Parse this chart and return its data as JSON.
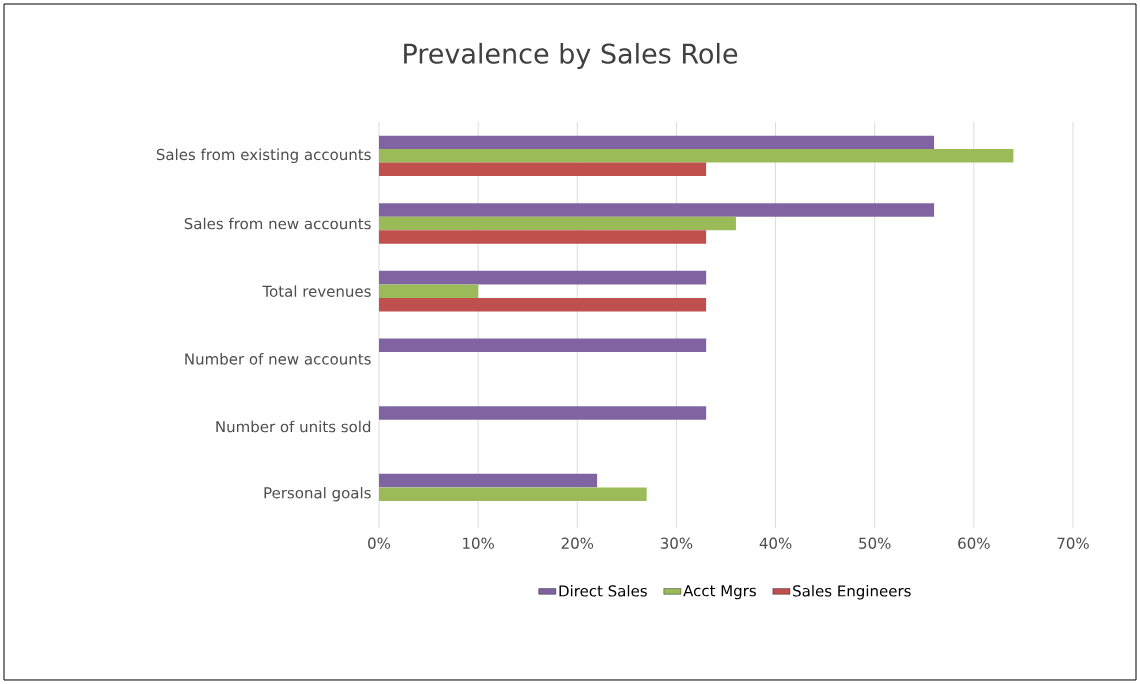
{
  "chart_data": {
    "type": "bar",
    "orientation": "horizontal",
    "title": "Prevalence by Sales Role",
    "categories": [
      "Sales from existing accounts",
      "Sales from new accounts",
      "Total revenues",
      "Number of new accounts",
      "Number of units sold",
      "Personal goals"
    ],
    "series": [
      {
        "name": "Direct Sales",
        "color": "#8064a2",
        "values": [
          56,
          56,
          33,
          33,
          33,
          22
        ]
      },
      {
        "name": "Acct Mgrs",
        "color": "#9bbb59",
        "values": [
          64,
          36,
          10,
          null,
          null,
          27
        ]
      },
      {
        "name": "Sales Engineers",
        "color": "#c0504d",
        "values": [
          33,
          33,
          33,
          null,
          null,
          null
        ]
      }
    ],
    "xlim": [
      0,
      70
    ],
    "xticks": [
      {
        "value": 0,
        "label": "0%"
      },
      {
        "value": 10,
        "label": "10%"
      },
      {
        "value": 20,
        "label": "20%"
      },
      {
        "value": 30,
        "label": "30%"
      },
      {
        "value": 40,
        "label": "40%"
      },
      {
        "value": 50,
        "label": "50%"
      },
      {
        "value": 60,
        "label": "60%"
      },
      {
        "value": 70,
        "label": "70%"
      }
    ],
    "grid": "x",
    "legend": "bottom"
  }
}
